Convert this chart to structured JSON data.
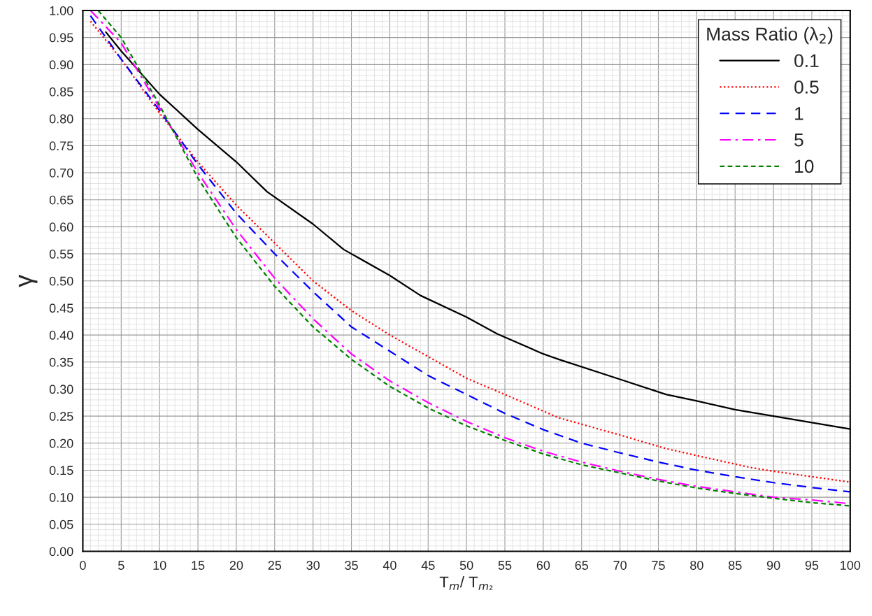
{
  "chart_data": {
    "type": "line",
    "xlabel": "T$_{m}$/ T$_{m₂}$",
    "ylabel": "γ",
    "legend_title": "Mass Ratio (λ$_{2}$)",
    "xlim": [
      0,
      100
    ],
    "xticks": [
      0,
      5,
      10,
      15,
      20,
      25,
      30,
      35,
      40,
      45,
      50,
      55,
      60,
      65,
      70,
      75,
      80,
      85,
      90,
      95,
      100
    ],
    "ylim": [
      0,
      1
    ],
    "yticks": [
      {
        "value": 0,
        "label": "0.00"
      },
      {
        "value": 0.05,
        "label": "0.05"
      },
      {
        "value": 0.1,
        "label": "0.10"
      },
      {
        "value": 0.15,
        "label": "0.15"
      },
      {
        "value": 0.2,
        "label": "0.20"
      },
      {
        "value": 0.25,
        "label": "0.25"
      },
      {
        "value": 0.3,
        "label": "0.30"
      },
      {
        "value": 0.35,
        "label": "0.35"
      },
      {
        "value": 0.4,
        "label": "0.40"
      },
      {
        "value": 0.45,
        "label": "0.45"
      },
      {
        "value": 0.5,
        "label": "0.50"
      },
      {
        "value": 0.55,
        "label": "0.55"
      },
      {
        "value": 0.6,
        "label": "0.60"
      },
      {
        "value": 0.65,
        "label": "0.65"
      },
      {
        "value": 0.7,
        "label": "0.70"
      },
      {
        "value": 0.75,
        "label": "0.75"
      },
      {
        "value": 0.8,
        "label": "0.80"
      },
      {
        "value": 0.85,
        "label": "0.85"
      },
      {
        "value": 0.9,
        "label": "0.90"
      },
      {
        "value": 0.95,
        "label": "0.95"
      },
      {
        "value": 1,
        "label": "1.00"
      }
    ],
    "grid": true,
    "legend": "top right",
    "marker": "none",
    "series": [
      {
        "name": "0.1",
        "color": "#000000",
        "line_style": "solid",
        "x": [
          3,
          5,
          10,
          15,
          20,
          24,
          30,
          34,
          40,
          44,
          50,
          54,
          60,
          62,
          70,
          76,
          80,
          85,
          90,
          95,
          100
        ],
        "values": [
          0.96,
          0.925,
          0.845,
          0.78,
          0.72,
          0.665,
          0.605,
          0.558,
          0.51,
          0.473,
          0.433,
          0.402,
          0.365,
          0.355,
          0.318,
          0.29,
          0.278,
          0.262,
          0.25,
          0.238,
          0.226
        ]
      },
      {
        "name": "0.5",
        "color": "#ff0000",
        "line_style": "dotted",
        "x": [
          1,
          5,
          10,
          15,
          20,
          25,
          30,
          35,
          40,
          45,
          50,
          55,
          62,
          70,
          76,
          80,
          87,
          90,
          95,
          100
        ],
        "values": [
          0.98,
          0.91,
          0.81,
          0.72,
          0.64,
          0.57,
          0.5,
          0.445,
          0.4,
          0.36,
          0.32,
          0.29,
          0.247,
          0.215,
          0.19,
          0.177,
          0.155,
          0.148,
          0.138,
          0.128
        ]
      },
      {
        "name": "1",
        "color": "#0000ff",
        "line_style": "dashed",
        "x": [
          1,
          5,
          10,
          15,
          20,
          25,
          30,
          35,
          40,
          45,
          50,
          55,
          60,
          65,
          70,
          75,
          80,
          85,
          90,
          95,
          100
        ],
        "values": [
          0.99,
          0.91,
          0.815,
          0.715,
          0.625,
          0.55,
          0.48,
          0.415,
          0.37,
          0.325,
          0.29,
          0.255,
          0.225,
          0.2,
          0.182,
          0.165,
          0.15,
          0.138,
          0.127,
          0.118,
          0.11
        ]
      },
      {
        "name": "5",
        "color": "#ff00ff",
        "line_style": "dashdot",
        "x": [
          1,
          5,
          10,
          15,
          20,
          25,
          30,
          35,
          40,
          45,
          50,
          55,
          60,
          65,
          70,
          75,
          80,
          85,
          90,
          95,
          100
        ],
        "values": [
          1.0,
          0.94,
          0.82,
          0.7,
          0.595,
          0.505,
          0.43,
          0.365,
          0.315,
          0.275,
          0.24,
          0.21,
          0.185,
          0.165,
          0.148,
          0.133,
          0.12,
          0.11,
          0.1,
          0.095,
          0.088
        ]
      },
      {
        "name": "10",
        "color": "#008000",
        "line_style": "short dashed",
        "x": [
          2,
          5,
          10,
          15,
          20,
          25,
          30,
          35,
          40,
          45,
          50,
          55,
          60,
          65,
          70,
          75,
          80,
          85,
          90,
          95,
          100
        ],
        "values": [
          1.0,
          0.95,
          0.825,
          0.69,
          0.58,
          0.49,
          0.415,
          0.355,
          0.305,
          0.265,
          0.232,
          0.205,
          0.18,
          0.16,
          0.145,
          0.13,
          0.117,
          0.107,
          0.098,
          0.09,
          0.084
        ]
      }
    ]
  }
}
